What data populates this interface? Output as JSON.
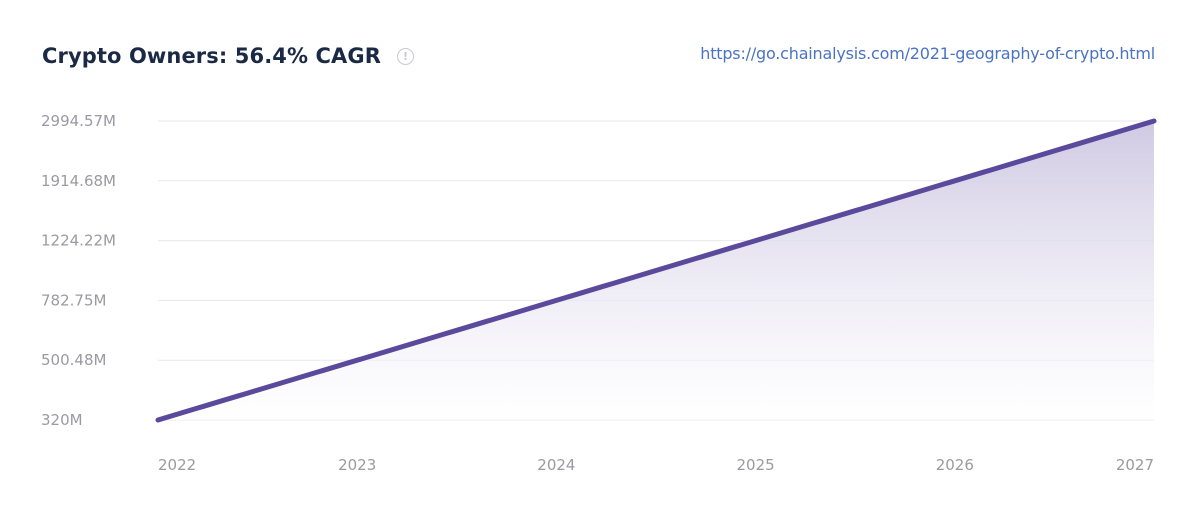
{
  "header": {
    "title": "Crypto Owners: 56.4% CAGR",
    "info_icon": "info-icon",
    "source_url": "https://go.chainalysis.com/2021-geography-of-crypto.html"
  },
  "colors": {
    "line": "#5b4a9b",
    "fill_top": "#cdc7e2",
    "fill_bottom": "#ffffff",
    "grid": "#e8e8ec",
    "tick_text": "#9a9aa2",
    "title": "#1b2a44",
    "link": "#4a73c4"
  },
  "chart_data": {
    "type": "area",
    "title": "Crypto Owners: 56.4% CAGR",
    "x": [
      "2022",
      "2023",
      "2024",
      "2025",
      "2026",
      "2027"
    ],
    "series": [
      {
        "values": [
          320,
          500.48,
          782.75,
          1224.22,
          1914.68,
          2994.57
        ],
        "unit": "M"
      }
    ],
    "y_ticks": [
      320,
      500.48,
      782.75,
      1224.22,
      1914.68,
      2994.57
    ],
    "y_tick_labels": [
      "320M",
      "500.48M",
      "782.75M",
      "1224.22M",
      "1914.68M",
      "2994.57M"
    ],
    "y_scale": "log",
    "ylim": [
      320,
      2994.57
    ],
    "grid": true,
    "legend": "none"
  }
}
